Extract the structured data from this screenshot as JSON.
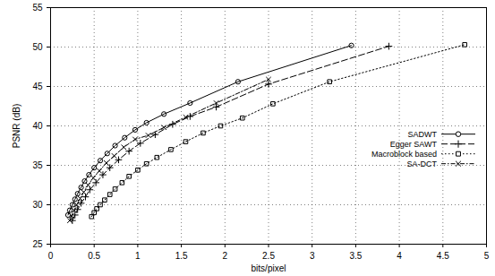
{
  "chart_data": {
    "type": "line",
    "x_label": "bits/pixel",
    "y_label": "PSNR (dB)",
    "xlim": [
      0,
      5
    ],
    "ylim": [
      25,
      55
    ],
    "xticks": [
      0,
      0.5,
      1,
      1.5,
      2,
      2.5,
      3,
      3.5,
      4,
      4.5,
      5
    ],
    "yticks": [
      25,
      30,
      35,
      40,
      45,
      50,
      55
    ],
    "grid": true,
    "legend": "right",
    "series": [
      {
        "name": "SADWT",
        "color": "#000000",
        "marker": "circle",
        "line_style": "solid",
        "x": [
          0.2,
          0.22,
          0.25,
          0.28,
          0.31,
          0.35,
          0.39,
          0.44,
          0.5,
          0.57,
          0.65,
          0.74,
          0.85,
          0.97,
          1.1,
          1.3,
          1.6,
          2.15,
          3.45
        ],
        "values": [
          28.7,
          29.3,
          30,
          30.7,
          31.4,
          32.2,
          33,
          33.8,
          34.7,
          35.6,
          36.5,
          37.5,
          38.5,
          39.5,
          40.4,
          41.5,
          42.9,
          45.6,
          50.2
        ]
      },
      {
        "name": "Egger SAWT",
        "color": "#000000",
        "marker": "plus",
        "line_style": "dashed",
        "x": [
          0.25,
          0.28,
          0.31,
          0.35,
          0.4,
          0.45,
          0.52,
          0.6,
          0.68,
          0.78,
          0.9,
          1.03,
          1.2,
          1.4,
          1.6,
          1.9,
          2.5,
          3.88
        ],
        "values": [
          28,
          28.7,
          29.4,
          30.2,
          31,
          31.9,
          32.8,
          33.8,
          34.7,
          35.7,
          36.8,
          37.8,
          38.9,
          40.2,
          41.2,
          42.4,
          45.3,
          50.1
        ]
      },
      {
        "name": "Macroblock based",
        "color": "#000000",
        "marker": "square",
        "line_style": "dotted",
        "x": [
          0.47,
          0.5,
          0.53,
          0.57,
          0.62,
          0.68,
          0.74,
          0.82,
          0.9,
          1.0,
          1.1,
          1.22,
          1.38,
          1.55,
          1.75,
          1.95,
          2.2,
          2.55,
          3.2,
          4.75
        ],
        "values": [
          28.5,
          29,
          29.5,
          30,
          30.6,
          31.3,
          32,
          32.8,
          33.6,
          34.4,
          35.2,
          36,
          37,
          38,
          39.1,
          40,
          41,
          42.8,
          45.6,
          50.3
        ]
      },
      {
        "name": "SA-DCT",
        "color": "#000000",
        "marker": "x",
        "line_style": "dashdot",
        "x": [
          0.22,
          0.24,
          0.27,
          0.3,
          0.34,
          0.38,
          0.43,
          0.49,
          0.56,
          0.64,
          0.73,
          0.84,
          0.97,
          1.12,
          1.3,
          1.55,
          1.9,
          2.5
        ],
        "values": [
          28,
          28.6,
          29.3,
          30,
          30.8,
          31.6,
          32.5,
          33.4,
          34.3,
          35.3,
          36.2,
          37.3,
          38.3,
          38.8,
          39.8,
          41.1,
          42.9,
          45.9
        ]
      }
    ]
  }
}
